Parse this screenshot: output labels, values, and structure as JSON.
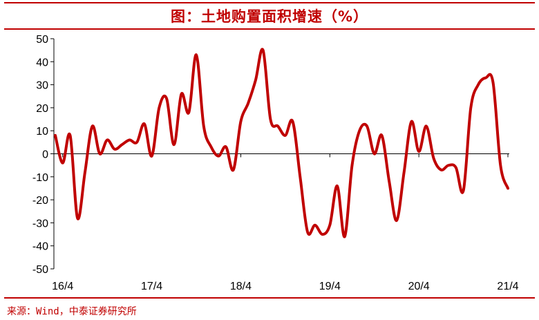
{
  "title": "图：土地购置面积增速（%）",
  "source": "来源：Wind，中泰证券研究所",
  "colors": {
    "line": "#c00000",
    "title": "#c00000",
    "axis": "#000000"
  },
  "chart_data": {
    "type": "line",
    "title": "图：土地购置面积增速（%）",
    "xlabel": "",
    "ylabel": "",
    "ylim": [
      -50,
      50
    ],
    "yticks": [
      50,
      40,
      30,
      20,
      10,
      0,
      -10,
      -20,
      -30,
      -40,
      -50
    ],
    "ytick_labels": [
      "50",
      "40",
      "30",
      "20",
      "10",
      "0",
      "-10",
      "-20",
      "-30",
      "-40",
      "-50"
    ],
    "xticks": [
      "16/4",
      "17/4",
      "18/4",
      "19/4",
      "20/4",
      "21/4"
    ],
    "grid": false,
    "legend": "none",
    "series": [
      {
        "color": "#c00000",
        "x": [
          "16/3",
          "16/4",
          "16/5",
          "16/6",
          "16/7",
          "16/8",
          "16/9",
          "16/10",
          "16/11",
          "16/12",
          "17/1",
          "17/2",
          "17/3",
          "17/4",
          "17/5",
          "17/6",
          "17/7",
          "17/8",
          "17/9",
          "17/10",
          "17/11",
          "17/12",
          "18/1",
          "18/2",
          "18/3",
          "18/4",
          "18/5",
          "18/6",
          "18/7",
          "18/8",
          "18/9",
          "18/10",
          "18/11",
          "18/12",
          "19/1",
          "19/2",
          "19/3",
          "19/4",
          "19/5",
          "19/6",
          "19/7",
          "19/8",
          "19/9",
          "19/10",
          "19/11",
          "19/12",
          "20/1",
          "20/2",
          "20/3",
          "20/4",
          "20/5",
          "20/6",
          "20/7",
          "20/8",
          "20/9",
          "20/10",
          "20/11",
          "20/12",
          "21/1",
          "21/2",
          "21/3",
          "21/4"
        ],
        "values": [
          8,
          -4,
          8,
          -28,
          -8,
          12,
          0,
          6,
          2,
          4,
          6,
          5,
          13,
          -1,
          20,
          24,
          4,
          26,
          18,
          43,
          12,
          3,
          -1,
          3,
          -7,
          14,
          22,
          32,
          45,
          15,
          12,
          8,
          14,
          -10,
          -34,
          -31,
          -35,
          -31,
          -14,
          -36,
          -5,
          10,
          12,
          0,
          8,
          -12,
          -29,
          -8,
          14,
          1,
          12,
          -2,
          -7,
          -5,
          -6,
          -16,
          20,
          30,
          33,
          31,
          -5,
          -15
        ]
      }
    ]
  }
}
